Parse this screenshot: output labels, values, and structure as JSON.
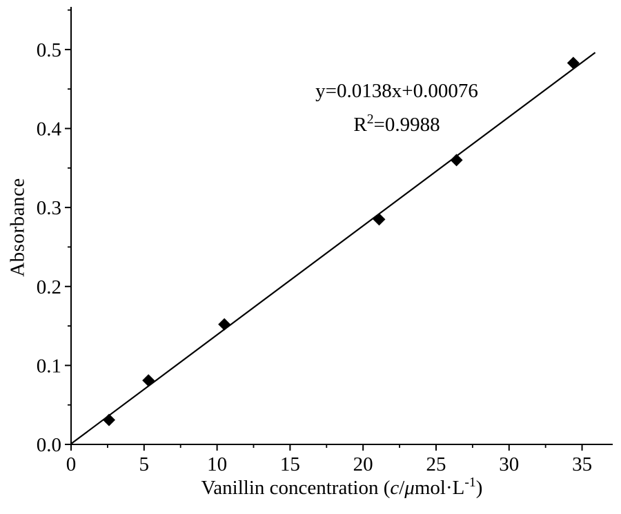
{
  "chart_data": {
    "type": "scatter",
    "ylabel": "Absorbance",
    "xlabel": {
      "prefix": "Vanillin concentration (",
      "var_c": "c",
      "slash": "/",
      "var_mu": "μ",
      "unit": "mol·L",
      "sup": "-1",
      "close": ")"
    },
    "xlim": [
      0,
      37.1
    ],
    "ylim": [
      0,
      0.554
    ],
    "x_ticks": [
      0,
      5,
      10,
      15,
      20,
      25,
      30,
      35
    ],
    "x_tick_labels": [
      "0",
      "5",
      "10",
      "15",
      "20",
      "25",
      "30",
      "35"
    ],
    "y_ticks": [
      0.0,
      0.1,
      0.2,
      0.3,
      0.4,
      0.5
    ],
    "y_tick_labels": [
      "0.0",
      "0.1",
      "0.2",
      "0.3",
      "0.4",
      "0.5"
    ],
    "x_major_step": 5,
    "x_minor_step": 2.5,
    "y_major_step": 0.1,
    "y_minor_step": 0.05,
    "grid": false,
    "legend": false,
    "marker": "diamond",
    "color": "#000000",
    "points": [
      {
        "x": 2.6,
        "y": 0.031
      },
      {
        "x": 5.3,
        "y": 0.081
      },
      {
        "x": 10.5,
        "y": 0.152
      },
      {
        "x": 21.1,
        "y": 0.285
      },
      {
        "x": 26.4,
        "y": 0.36
      },
      {
        "x": 34.4,
        "y": 0.483
      }
    ],
    "fit": {
      "slope": 0.0138,
      "intercept": 0.00076,
      "x_start": 0,
      "x_end": 35.9
    },
    "annotation": {
      "line1": "y=0.0138x+0.00076",
      "r_label": "R",
      "r_sup": "2",
      "r_rest": "=0.9988"
    }
  }
}
